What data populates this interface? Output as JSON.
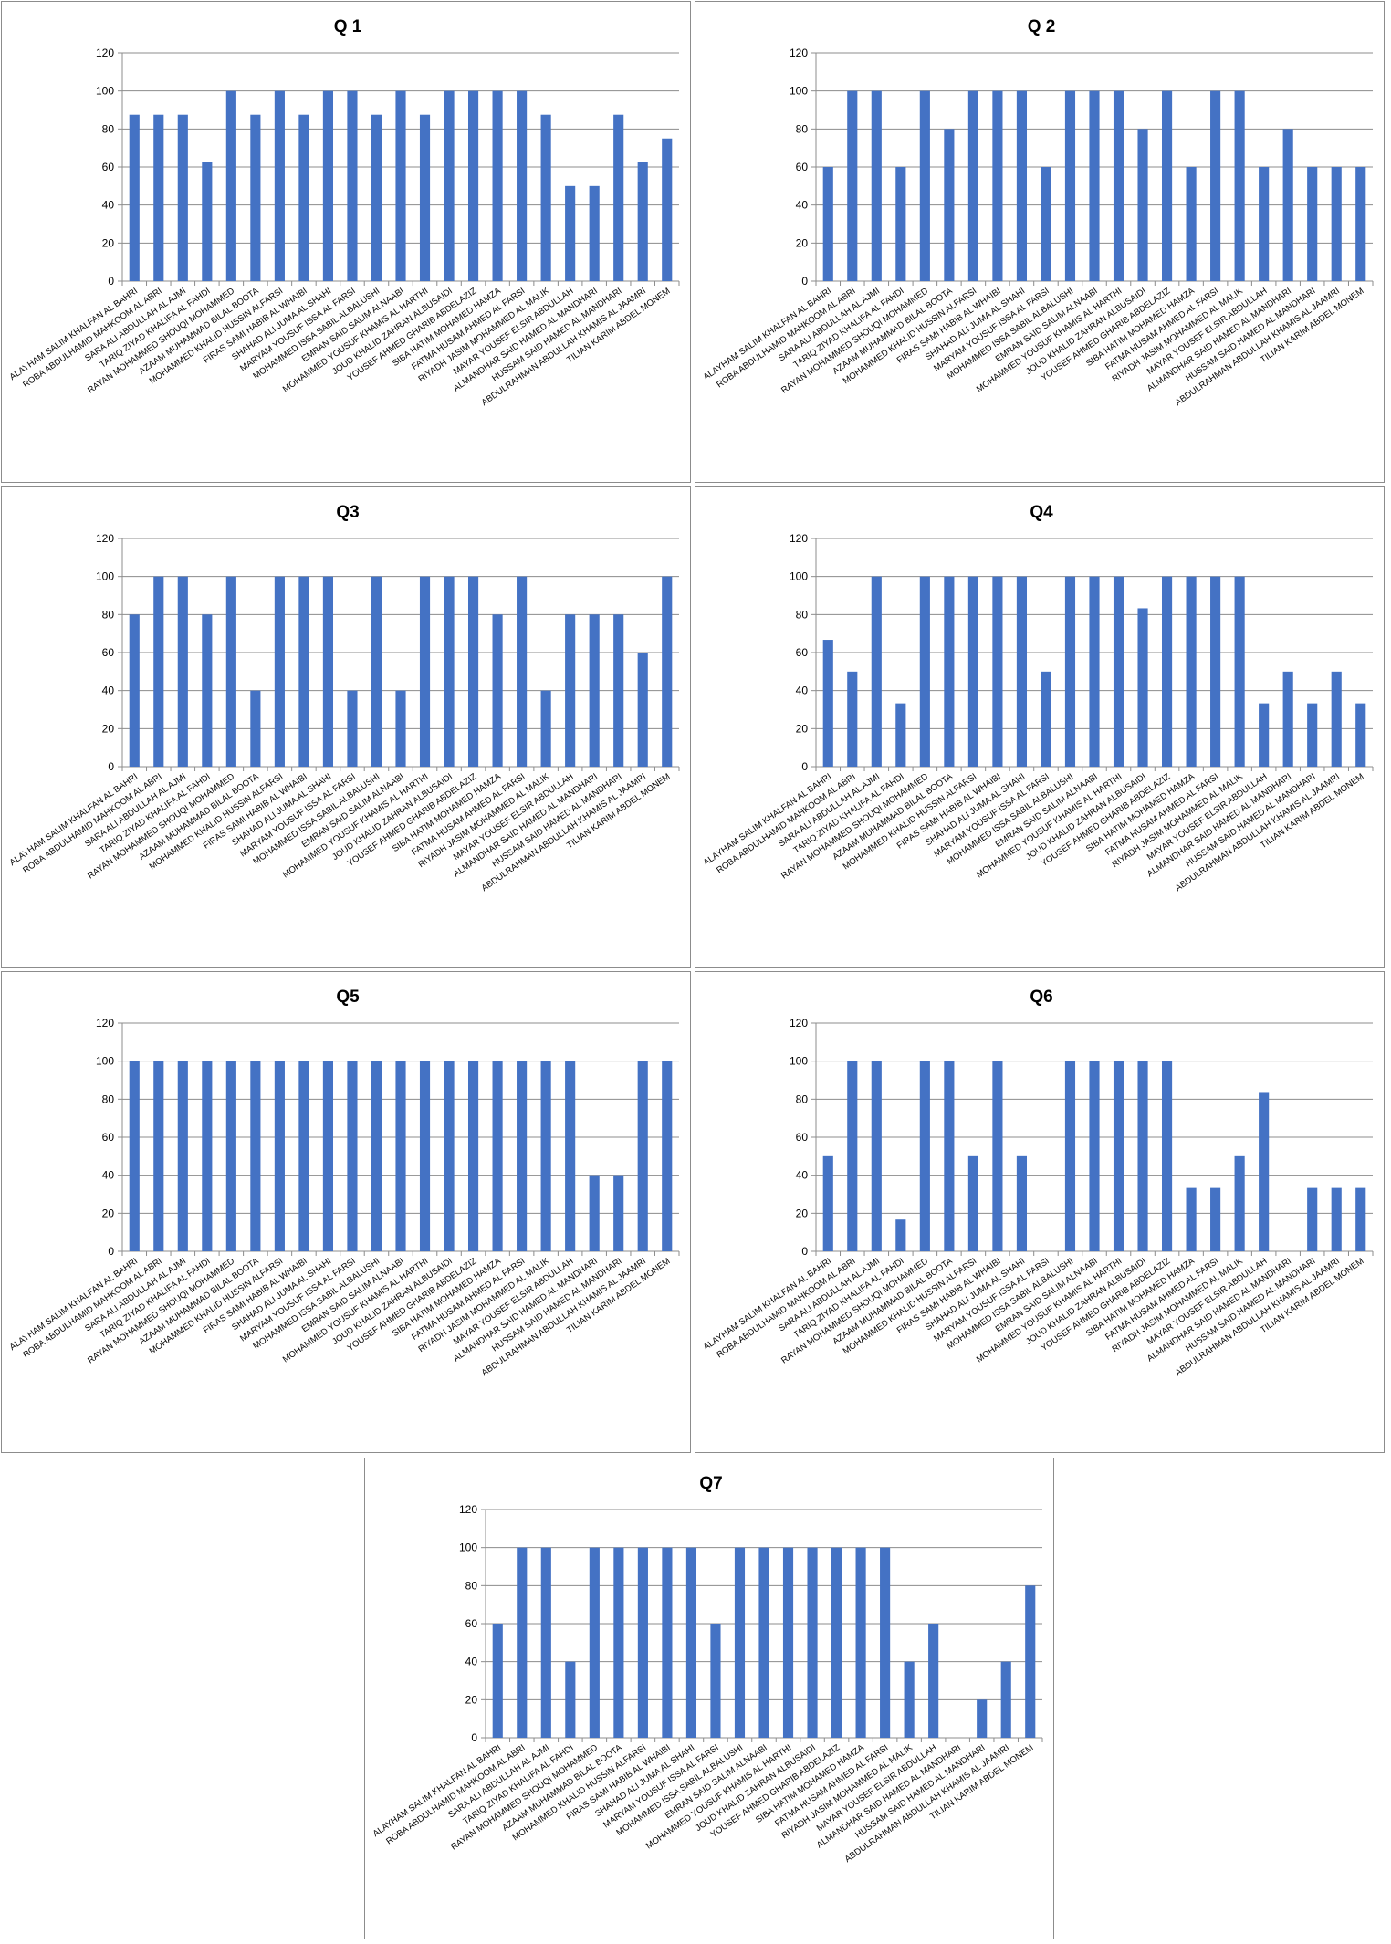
{
  "colors": {
    "bar": "#4472C4"
  },
  "chart_data": [
    {
      "type": "bar",
      "title": "Q 1",
      "ylim": [
        0,
        120
      ],
      "yticks": [
        0,
        20,
        40,
        60,
        80,
        100,
        120
      ],
      "grid": true,
      "categories": [
        "ALAYHAM SALIM KHALFAN AL BAHRI",
        "ROBA ABDULHAMID MAHKOOM AL ABRI",
        "SARA ALI ABDULLAH AL AJMI",
        "TARIQ ZIYAD KHALIFA AL FAHDI",
        "RAYAN MOHAMMED SHOUQI MOHAMMED",
        "AZAAM MUHAMMAD BILAL BOOTA",
        "MOHAMMED KHALID HUSSIN ALFARSI",
        "FIRAS SAMI HABIB AL WHAIBI",
        "SHAHAD ALI JUMA AL SHAHI",
        "MARYAM YOUSUF ISSA AL FARSI",
        "MOHAMMED ISSA SABIL ALBALUSHI",
        "EMRAN SAID SALIM ALNAABI",
        "MOHAMMED YOUSUF KHAMIS AL HARTHI",
        "JOUD KHALID ZAHRAN ALBUSAIDI",
        "YOUSEF AHMED GHARIB ABDELAZIZ",
        "SIBA HATIM MOHAMED HAMZA",
        "FATMA HUSAM AHMED AL FARSI",
        "RIYADH JASIM MOHAMMED AL MALIK",
        "MAYAR YOUSEF ELSIR ABDULLAH",
        "ALMANDHAR SAID HAMED AL MANDHARI",
        "HUSSAM SAID HAMED AL MANDHARI",
        "ABDULRAHMAN ABDULLAH KHAMIS AL JAAMRI",
        "TILIAN KARIM ABDEL MONEM"
      ],
      "values": [
        87.5,
        87.5,
        87.5,
        62.5,
        100,
        87.5,
        100,
        87.5,
        100,
        100,
        87.5,
        100,
        87.5,
        100,
        100,
        100,
        100,
        87.5,
        50,
        50,
        87.5,
        62.5,
        75
      ]
    },
    {
      "type": "bar",
      "title": "Q 2",
      "ylim": [
        0,
        120
      ],
      "yticks": [
        0,
        20,
        40,
        60,
        80,
        100,
        120
      ],
      "grid": true,
      "categories": [
        "ALAYHAM SALIM KHALFAN AL BAHRI",
        "ROBA ABDULHAMID MAHKOOM AL ABRI",
        "SARA ALI ABDULLAH AL AJMI",
        "TARIQ ZIYAD KHALIFA AL FAHDI",
        "RAYAN MOHAMMED SHOUQI MOHAMMED",
        "AZAAM MUHAMMAD BILAL BOOTA",
        "MOHAMMED KHALID HUSSIN ALFARSI",
        "FIRAS SAMI HABIB AL WHAIBI",
        "SHAHAD ALI JUMA AL SHAHI",
        "MARYAM YOUSUF ISSA AL FARSI",
        "MOHAMMED ISSA SABIL ALBALUSHI",
        "EMRAN SAID SALIM ALNAABI",
        "MOHAMMED YOUSUF KHAMIS AL HARTHI",
        "JOUD KHALID ZAHRAN ALBUSAIDI",
        "YOUSEF AHMED GHARIB ABDELAZIZ",
        "SIBA HATIM MOHAMED HAMZA",
        "FATMA HUSAM AHMED AL FARSI",
        "RIYADH JASIM MOHAMMED AL MALIK",
        "MAYAR YOUSEF ELSIR ABDULLAH",
        "ALMANDHAR SAID HAMED AL MANDHARI",
        "HUSSAM SAID HAMED AL MANDHARI",
        "ABDULRAHMAN ABDULLAH KHAMIS AL JAAMRI",
        "TILIAN KARIM ABDEL MONEM"
      ],
      "values": [
        60,
        100,
        100,
        60,
        100,
        80,
        100,
        100,
        100,
        60,
        100,
        100,
        100,
        80,
        100,
        60,
        100,
        100,
        60,
        80,
        60,
        60,
        60
      ]
    },
    {
      "type": "bar",
      "title": "Q3",
      "ylim": [
        0,
        120
      ],
      "yticks": [
        0,
        20,
        40,
        60,
        80,
        100,
        120
      ],
      "grid": true,
      "categories": [
        "ALAYHAM SALIM KHALFAN AL BAHRI",
        "ROBA ABDULHAMID MAHKOOM AL ABRI",
        "SARA ALI ABDULLAH AL AJMI",
        "TARIQ ZIYAD KHALIFA AL FAHDI",
        "RAYAN MOHAMMED SHOUQI MOHAMMED",
        "AZAAM MUHAMMAD BILAL BOOTA",
        "MOHAMMED KHALID HUSSIN ALFARSI",
        "FIRAS SAMI HABIB AL WHAIBI",
        "SHAHAD ALI JUMA AL SHAHI",
        "MARYAM YOUSUF ISSA AL FARSI",
        "MOHAMMED ISSA SABIL ALBALUSHI",
        "EMRAN SAID SALIM ALNAABI",
        "MOHAMMED YOUSUF KHAMIS AL HARTHI",
        "JOUD KHALID ZAHRAN ALBUSAIDI",
        "YOUSEF AHMED GHARIB ABDELAZIZ",
        "SIBA HATIM MOHAMED HAMZA",
        "FATMA HUSAM AHMED AL FARSI",
        "RIYADH JASIM MOHAMMED AL MALIK",
        "MAYAR YOUSEF ELSIR ABDULLAH",
        "ALMANDHAR SAID HAMED AL MANDHARI",
        "HUSSAM SAID HAMED AL MANDHARI",
        "ABDULRAHMAN ABDULLAH KHAMIS AL JAAMRI",
        "TILIAN KARIM ABDEL MONEM"
      ],
      "values": [
        80,
        100,
        100,
        80,
        100,
        40,
        100,
        100,
        100,
        40,
        100,
        40,
        100,
        100,
        100,
        80,
        100,
        40,
        80,
        80,
        80,
        60,
        100
      ]
    },
    {
      "type": "bar",
      "title": "Q4",
      "ylim": [
        0,
        120
      ],
      "yticks": [
        0,
        20,
        40,
        60,
        80,
        100,
        120
      ],
      "grid": true,
      "categories": [
        "ALAYHAM SALIM KHALFAN AL BAHRI",
        "ROBA ABDULHAMID MAHKOOM AL ABRI",
        "SARA ALI ABDULLAH AL AJMI",
        "TARIQ ZIYAD KHALIFA AL FAHDI",
        "RAYAN MOHAMMED SHOUQI MOHAMMED",
        "AZAAM MUHAMMAD BILAL BOOTA",
        "MOHAMMED KHALID HUSSIN ALFARSI",
        "FIRAS SAMI HABIB AL WHAIBI",
        "SHAHAD ALI JUMA AL SHAHI",
        "MARYAM YOUSUF ISSA AL FARSI",
        "MOHAMMED ISSA SABIL ALBALUSHI",
        "EMRAN SAID SALIM ALNAABI",
        "MOHAMMED YOUSUF KHAMIS AL HARTHI",
        "JOUD KHALID ZAHRAN ALBUSAIDI",
        "YOUSEF AHMED GHARIB ABDELAZIZ",
        "SIBA HATIM MOHAMED HAMZA",
        "FATMA HUSAM AHMED AL FARSI",
        "RIYADH JASIM MOHAMMED AL MALIK",
        "MAYAR YOUSEF ELSIR ABDULLAH",
        "ALMANDHAR SAID HAMED AL MANDHARI",
        "HUSSAM SAID HAMED AL MANDHARI",
        "ABDULRAHMAN ABDULLAH KHAMIS AL JAAMRI",
        "TILIAN KARIM ABDEL MONEM"
      ],
      "values": [
        66.7,
        50,
        100,
        33.3,
        100,
        100,
        100,
        100,
        100,
        50,
        100,
        100,
        100,
        83.3,
        100,
        100,
        100,
        100,
        33.3,
        50,
        33.3,
        50,
        33.3
      ]
    },
    {
      "type": "bar",
      "title": "Q5",
      "ylim": [
        0,
        120
      ],
      "yticks": [
        0,
        20,
        40,
        60,
        80,
        100,
        120
      ],
      "grid": true,
      "categories": [
        "ALAYHAM SALIM KHALFAN AL BAHRI",
        "ROBA ABDULHAMID MAHKOOM AL ABRI",
        "SARA ALI ABDULLAH AL AJMI",
        "TARIQ ZIYAD KHALIFA AL FAHDI",
        "RAYAN MOHAMMED SHOUQI MOHAMMED",
        "AZAAM MUHAMMAD BILAL BOOTA",
        "MOHAMMED KHALID HUSSIN ALFARSI",
        "FIRAS SAMI HABIB AL WHAIBI",
        "SHAHAD ALI JUMA AL SHAHI",
        "MARYAM YOUSUF ISSA AL FARSI",
        "MOHAMMED ISSA SABIL ALBALUSHI",
        "EMRAN SAID SALIM ALNAABI",
        "MOHAMMED YOUSUF KHAMIS AL HARTHI",
        "JOUD KHALID ZAHRAN ALBUSAIDI",
        "YOUSEF AHMED GHARIB ABDELAZIZ",
        "SIBA HATIM MOHAMED HAMZA",
        "FATMA HUSAM AHMED AL FARSI",
        "RIYADH JASIM MOHAMMED AL MALIK",
        "MAYAR YOUSEF ELSIR ABDULLAH",
        "ALMANDHAR SAID HAMED AL MANDHARI",
        "HUSSAM SAID HAMED AL MANDHARI",
        "ABDULRAHMAN ABDULLAH KHAMIS AL JAAMRI",
        "TILIAN KARIM ABDEL MONEM"
      ],
      "values": [
        100,
        100,
        100,
        100,
        100,
        100,
        100,
        100,
        100,
        100,
        100,
        100,
        100,
        100,
        100,
        100,
        100,
        100,
        100,
        40,
        40,
        100,
        100
      ]
    },
    {
      "type": "bar",
      "title": "Q6",
      "ylim": [
        0,
        120
      ],
      "yticks": [
        0,
        20,
        40,
        60,
        80,
        100,
        120
      ],
      "grid": true,
      "categories": [
        "ALAYHAM SALIM KHALFAN AL BAHRI",
        "ROBA ABDULHAMID MAHKOOM AL ABRI",
        "SARA ALI ABDULLAH AL AJMI",
        "TARIQ ZIYAD KHALIFA AL FAHDI",
        "RAYAN MOHAMMED SHOUQI MOHAMMED",
        "AZAAM MUHAMMAD BILAL BOOTA",
        "MOHAMMED KHALID HUSSIN ALFARSI",
        "FIRAS SAMI HABIB AL WHAIBI",
        "SHAHAD ALI JUMA AL SHAHI",
        "MARYAM YOUSUF ISSA AL FARSI",
        "MOHAMMED ISSA SABIL ALBALUSHI",
        "EMRAN SAID SALIM ALNAABI",
        "MOHAMMED YOUSUF KHAMIS AL HARTHI",
        "JOUD KHALID ZAHRAN ALBUSAIDI",
        "YOUSEF AHMED GHARIB ABDELAZIZ",
        "SIBA HATIM MOHAMED HAMZA",
        "FATMA HUSAM AHMED AL FARSI",
        "RIYADH JASIM MOHAMMED AL MALIK",
        "MAYAR YOUSEF ELSIR ABDULLAH",
        "ALMANDHAR SAID HAMED AL MANDHARI",
        "HUSSAM SAID HAMED AL MANDHARI",
        "ABDULRAHMAN ABDULLAH KHAMIS AL JAAMRI",
        "TILIAN KARIM ABDEL MONEM"
      ],
      "values": [
        50,
        100,
        100,
        16.7,
        100,
        100,
        50,
        100,
        50,
        0,
        100,
        100,
        100,
        100,
        100,
        33.3,
        33.3,
        50,
        83.3,
        0,
        33.3,
        33.3,
        33.3
      ]
    },
    {
      "type": "bar",
      "title": "Q7",
      "ylim": [
        0,
        120
      ],
      "yticks": [
        0,
        20,
        40,
        60,
        80,
        100,
        120
      ],
      "grid": true,
      "categories": [
        "ALAYHAM SALIM KHALFAN AL BAHRI",
        "ROBA ABDULHAMID MAHKOOM AL ABRI",
        "SARA ALI ABDULLAH AL AJMI",
        "TARIQ ZIYAD KHALIFA AL FAHDI",
        "RAYAN MOHAMMED SHOUQI MOHAMMED",
        "AZAAM MUHAMMAD BILAL BOOTA",
        "MOHAMMED KHALID HUSSIN ALFARSI",
        "FIRAS SAMI HABIB AL WHAIBI",
        "SHAHAD ALI JUMA AL SHAHI",
        "MARYAM YOUSUF ISSA AL FARSI",
        "MOHAMMED ISSA SABIL ALBALUSHI",
        "EMRAN SAID SALIM ALNAABI",
        "MOHAMMED YOUSUF KHAMIS AL HARTHI",
        "JOUD KHALID ZAHRAN ALBUSAIDI",
        "YOUSEF AHMED GHARIB ABDELAZIZ",
        "SIBA HATIM MOHAMED HAMZA",
        "FATMA HUSAM AHMED AL FARSI",
        "RIYADH JASIM MOHAMMED AL MALIK",
        "MAYAR YOUSEF ELSIR ABDULLAH",
        "ALMANDHAR SAID HAMED AL MANDHARI",
        "HUSSAM SAID HAMED AL MANDHARI",
        "ABDULRAHMAN ABDULLAH KHAMIS AL JAAMRI",
        "TILIAN KARIM ABDEL MONEM"
      ],
      "values": [
        60,
        100,
        100,
        40,
        100,
        100,
        100,
        100,
        100,
        60,
        100,
        100,
        100,
        100,
        100,
        100,
        100,
        40,
        60,
        0,
        20,
        40,
        80
      ]
    }
  ]
}
